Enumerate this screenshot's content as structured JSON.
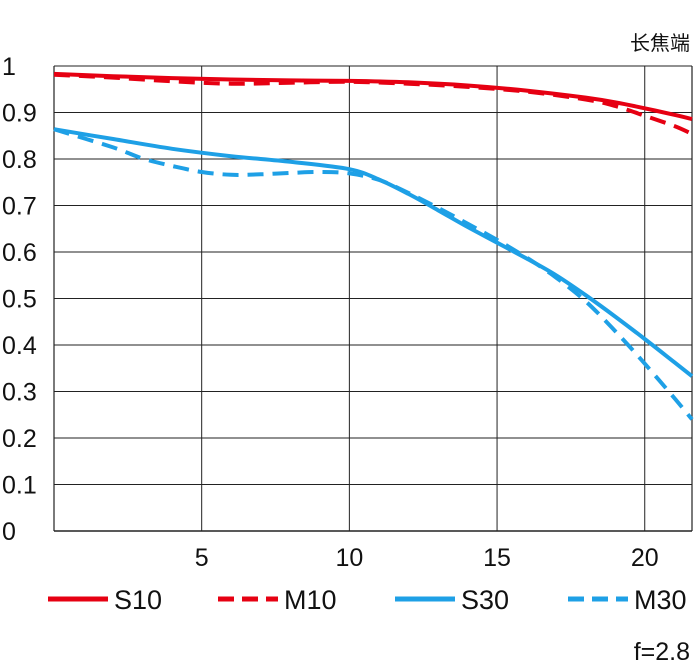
{
  "chart_data": {
    "type": "line",
    "title": "",
    "corner_label": "长焦端",
    "footnote": "f=2.8",
    "xlabel": "",
    "ylabel": "",
    "xlim": [
      0,
      21.6
    ],
    "ylim": [
      0,
      1
    ],
    "xticks": [
      5,
      10,
      15,
      20
    ],
    "xtick_labels": [
      "5",
      "10",
      "15",
      "20"
    ],
    "yticks": [
      0,
      0.1,
      0.2,
      0.3,
      0.4,
      0.5,
      0.6,
      0.7,
      0.8,
      0.9,
      1
    ],
    "ytick_labels": [
      "0",
      "0.1",
      "0.2",
      "0.3",
      "0.4",
      "0.5",
      "0.6",
      "0.7",
      "0.8",
      "0.9",
      "1"
    ],
    "grid": true,
    "legend_position": "bottom",
    "series": [
      {
        "name": "S10",
        "color": "#e60012",
        "dash": "solid",
        "x": [
          0,
          2,
          4,
          6,
          8,
          10,
          12,
          14,
          16,
          18,
          19,
          20,
          21,
          21.6
        ],
        "y": [
          0.983,
          0.978,
          0.974,
          0.971,
          0.969,
          0.968,
          0.965,
          0.958,
          0.947,
          0.932,
          0.922,
          0.909,
          0.895,
          0.886
        ]
      },
      {
        "name": "M10",
        "color": "#e60012",
        "dash": "dashed",
        "x": [
          0,
          2,
          4,
          6,
          8,
          10,
          12,
          14,
          16,
          18,
          19,
          20,
          21,
          21.6
        ],
        "y": [
          0.981,
          0.975,
          0.967,
          0.962,
          0.964,
          0.966,
          0.962,
          0.955,
          0.945,
          0.928,
          0.914,
          0.893,
          0.871,
          0.854
        ]
      },
      {
        "name": "S30",
        "color": "#1ea0e6",
        "dash": "solid",
        "x": [
          0,
          2,
          4,
          6,
          8,
          10,
          11,
          12,
          13,
          14,
          15,
          16,
          17,
          18,
          19,
          20,
          21,
          21.6
        ],
        "y": [
          0.864,
          0.843,
          0.822,
          0.806,
          0.794,
          0.778,
          0.756,
          0.725,
          0.69,
          0.654,
          0.62,
          0.586,
          0.55,
          0.507,
          0.461,
          0.413,
          0.363,
          0.333
        ]
      },
      {
        "name": "M30",
        "color": "#1ea0e6",
        "dash": "dashed",
        "x": [
          0,
          2,
          3,
          4,
          5,
          6,
          7,
          8,
          9,
          10,
          11,
          12,
          13,
          14,
          15,
          16,
          17,
          18,
          19,
          20,
          21,
          21.6
        ],
        "y": [
          0.864,
          0.825,
          0.801,
          0.785,
          0.772,
          0.766,
          0.767,
          0.77,
          0.772,
          0.769,
          0.755,
          0.727,
          0.695,
          0.661,
          0.626,
          0.588,
          0.545,
          0.494,
          0.43,
          0.36,
          0.286,
          0.24
        ]
      }
    ]
  }
}
